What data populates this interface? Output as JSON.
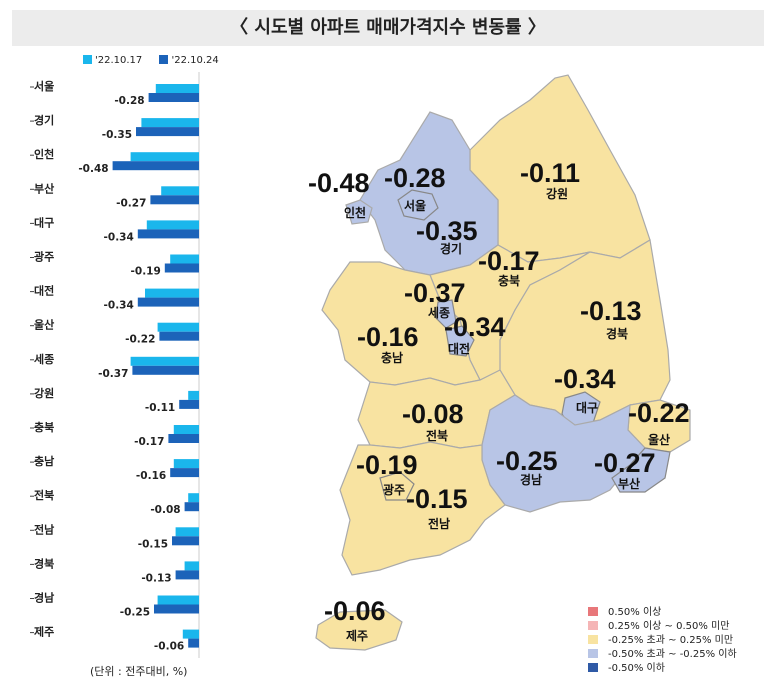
{
  "title": "〈 시도별 아파트 매매가격지수 변동률 〉",
  "colors": {
    "week1": "#1ab6ec",
    "week2": "#1c63b9",
    "legend_ge_050": "#e8777a",
    "legend_025_050": "#f5b5b6",
    "legend_neutral": "#f8e3a1",
    "legend_neg_025_050": "#b8c5e6",
    "legend_le_neg_050": "#2f5aa6"
  },
  "bar_legend": {
    "week1": "'22.10.17",
    "week2": "'22.10.24"
  },
  "unit_note": "(단위 : 전주대비, %)",
  "chart_data": {
    "type": "bar",
    "orientation": "horizontal",
    "categories": [
      "서울",
      "경기",
      "인천",
      "부산",
      "대구",
      "광주",
      "대전",
      "울산",
      "세종",
      "강원",
      "충북",
      "충남",
      "전북",
      "전남",
      "경북",
      "경남",
      "제주"
    ],
    "series": [
      {
        "name": "'22.10.17",
        "values": [
          -0.24,
          -0.32,
          -0.38,
          -0.21,
          -0.29,
          -0.16,
          -0.3,
          -0.23,
          -0.38,
          -0.06,
          -0.14,
          -0.14,
          -0.06,
          -0.13,
          -0.08,
          -0.23,
          -0.09
        ]
      },
      {
        "name": "'22.10.24",
        "values": [
          -0.28,
          -0.35,
          -0.48,
          -0.27,
          -0.34,
          -0.19,
          -0.34,
          -0.22,
          -0.37,
          -0.11,
          -0.17,
          -0.16,
          -0.08,
          -0.15,
          -0.13,
          -0.25,
          -0.06
        ]
      }
    ],
    "data_labels": [
      "-0.28",
      "-0.35",
      "-0.48",
      "-0.27",
      "-0.34",
      "-0.19",
      "-0.34",
      "-0.22",
      "-0.37",
      "-0.11",
      "-0.17",
      "-0.16",
      "-0.08",
      "-0.15",
      "-0.13",
      "-0.25",
      "-0.06"
    ],
    "xlim": [
      -0.5,
      0
    ]
  },
  "map": {
    "regions": [
      {
        "id": "seoul",
        "name": "서울",
        "value": "-0.28",
        "color": "blue"
      },
      {
        "id": "gyeonggi",
        "name": "경기",
        "value": "-0.35",
        "color": "blue"
      },
      {
        "id": "incheon",
        "name": "인천",
        "value": "-0.48",
        "color": "blue"
      },
      {
        "id": "gangwon",
        "name": "강원",
        "value": "-0.11",
        "color": "yellow"
      },
      {
        "id": "chungbuk",
        "name": "충북",
        "value": "-0.17",
        "color": "yellow"
      },
      {
        "id": "sejong",
        "name": "세종",
        "value": "-0.37",
        "color": "blue"
      },
      {
        "id": "daejeon",
        "name": "대전",
        "value": "-0.34",
        "color": "blue"
      },
      {
        "id": "chungnam",
        "name": "충남",
        "value": "-0.16",
        "color": "yellow"
      },
      {
        "id": "gyeongbuk",
        "name": "경북",
        "value": "-0.13",
        "color": "yellow"
      },
      {
        "id": "daegu",
        "name": "대구",
        "value": "-0.34",
        "color": "blue"
      },
      {
        "id": "jeonbuk",
        "name": "전북",
        "value": "-0.08",
        "color": "yellow"
      },
      {
        "id": "ulsan",
        "name": "울산",
        "value": "-0.22",
        "color": "yellow"
      },
      {
        "id": "gwangju",
        "name": "광주",
        "value": "-0.19",
        "color": "yellow"
      },
      {
        "id": "jeonnam",
        "name": "전남",
        "value": "-0.15",
        "color": "yellow"
      },
      {
        "id": "gyeongnam",
        "name": "경남",
        "value": "-0.25",
        "color": "blue"
      },
      {
        "id": "busan",
        "name": "부산",
        "value": "-0.27",
        "color": "blue"
      },
      {
        "id": "jeju",
        "name": "제주",
        "value": "-0.06",
        "color": "yellow"
      }
    ]
  },
  "map_legend": [
    {
      "label": "0.50% 이상",
      "color": "#e8777a"
    },
    {
      "label": "0.25% 이상 ~ 0.50% 미만",
      "color": "#f5b5b6"
    },
    {
      "label": "-0.25% 초과 ~ 0.25% 미만",
      "color": "#f8e3a1"
    },
    {
      "label": "-0.50% 초과 ~ -0.25% 이하",
      "color": "#b8c5e6"
    },
    {
      "label": "-0.50% 이하",
      "color": "#2f5aa6"
    }
  ]
}
